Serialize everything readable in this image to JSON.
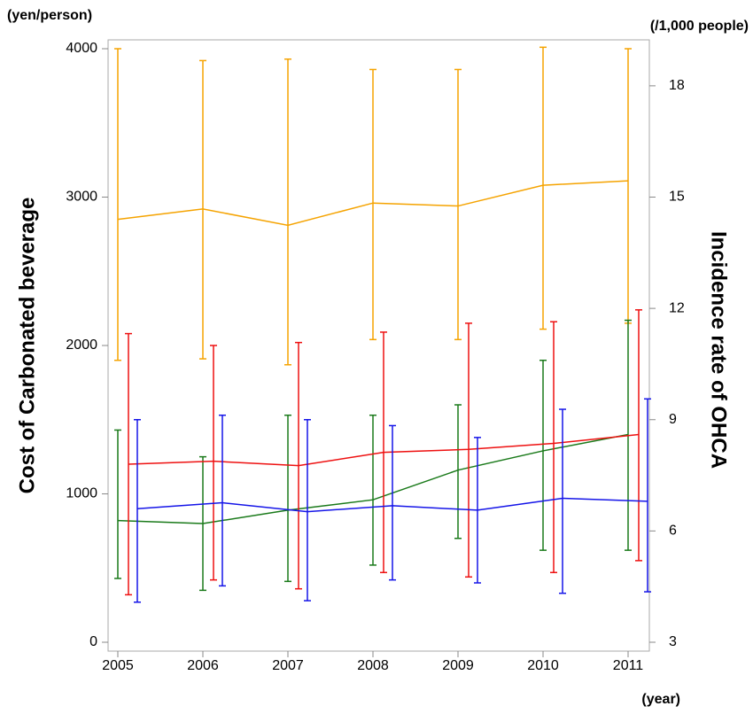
{
  "chart_data": {
    "type": "errorline",
    "y_unit_label": "(yen/person)",
    "y2_unit_label": "(/1,000 people)",
    "y_label": "Cost of Carbonated beverage",
    "y2_label": "Incidence rate of OHCA",
    "x_unit_label": "(year)",
    "x": [
      2005,
      2006,
      2007,
      2008,
      2009,
      2010,
      2011
    ],
    "xlim": [
      2005,
      2011.3
    ],
    "xticks": [
      2005,
      2006,
      2007,
      2008,
      2009,
      2010,
      2011
    ],
    "ylim": [
      0,
      4000
    ],
    "yticks": [
      0,
      1000,
      2000,
      3000,
      4000
    ],
    "y2lim": [
      3,
      19
    ],
    "y2ticks": [
      3,
      6,
      9,
      12,
      15,
      18
    ],
    "series": [
      {
        "color": "#f5a300",
        "values": [
          2850,
          2920,
          2810,
          2960,
          2940,
          3080,
          3110
        ],
        "low": [
          1900,
          1910,
          1870,
          2040,
          2040,
          2110,
          2150
        ],
        "high": [
          4000,
          3920,
          3930,
          3860,
          3860,
          4010,
          4000
        ]
      },
      {
        "color": "#1a7a1a",
        "values": [
          820,
          800,
          890,
          960,
          1160,
          1290,
          1400
        ],
        "low": [
          430,
          350,
          410,
          520,
          700,
          620,
          620
        ],
        "high": [
          1430,
          1250,
          1530,
          1530,
          1600,
          1900,
          2170
        ]
      },
      {
        "color": "#ee1111",
        "values": [
          1200,
          1220,
          1190,
          1280,
          1300,
          1340,
          1400
        ],
        "low": [
          320,
          420,
          360,
          470,
          440,
          470,
          550
        ],
        "high": [
          2080,
          2000,
          2020,
          2090,
          2150,
          2160,
          2240
        ]
      },
      {
        "color": "#1515e8",
        "values": [
          900,
          940,
          880,
          920,
          890,
          970,
          950
        ],
        "low": [
          270,
          380,
          280,
          420,
          400,
          330,
          340
        ],
        "high": [
          1500,
          1530,
          1500,
          1460,
          1380,
          1570,
          1640
        ]
      }
    ]
  }
}
